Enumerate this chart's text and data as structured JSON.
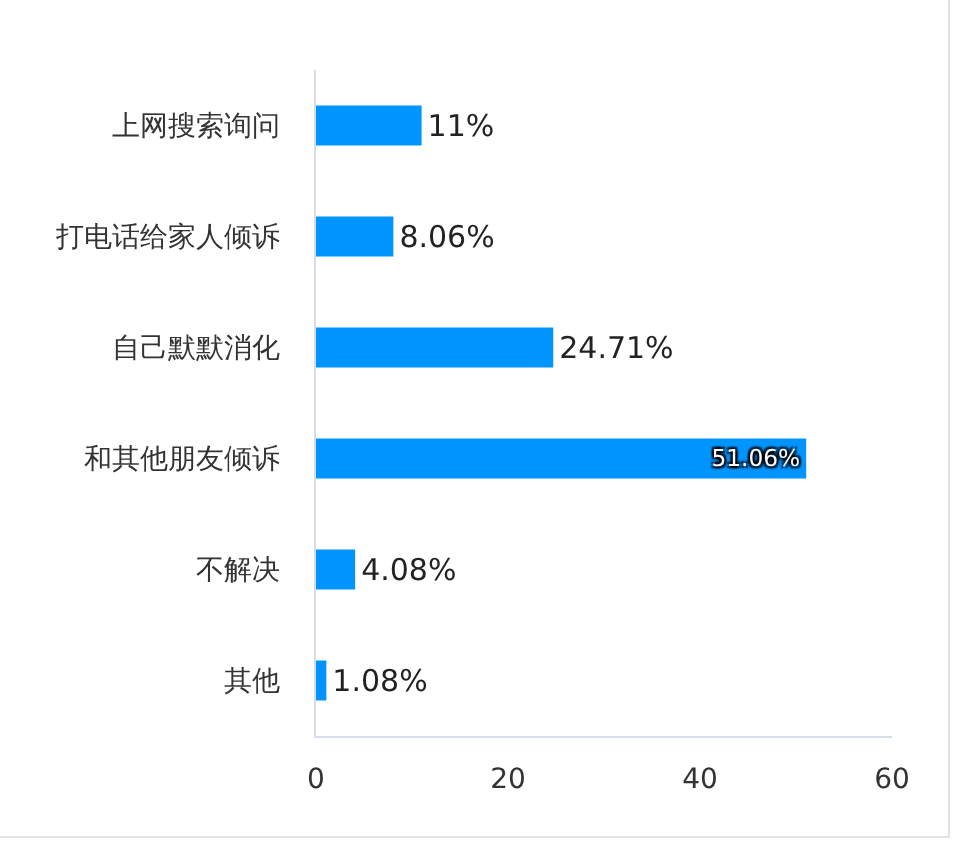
{
  "chart_data": {
    "type": "bar",
    "orientation": "horizontal",
    "categories": [
      "上网搜索询问",
      "打电话给家人倾诉",
      "自己默默消化",
      "和其他朋友倾诉",
      "不解决",
      "其他"
    ],
    "values": [
      11,
      8.06,
      24.71,
      51.06,
      4.08,
      1.08
    ],
    "value_labels": [
      "11%",
      "8.06%",
      "24.71%",
      "51.06%",
      "4.08%",
      "1.08%"
    ],
    "color": "#0094ff",
    "xlim": [
      0,
      60
    ],
    "xticks": [
      0,
      20,
      40,
      60
    ],
    "grid": false
  }
}
